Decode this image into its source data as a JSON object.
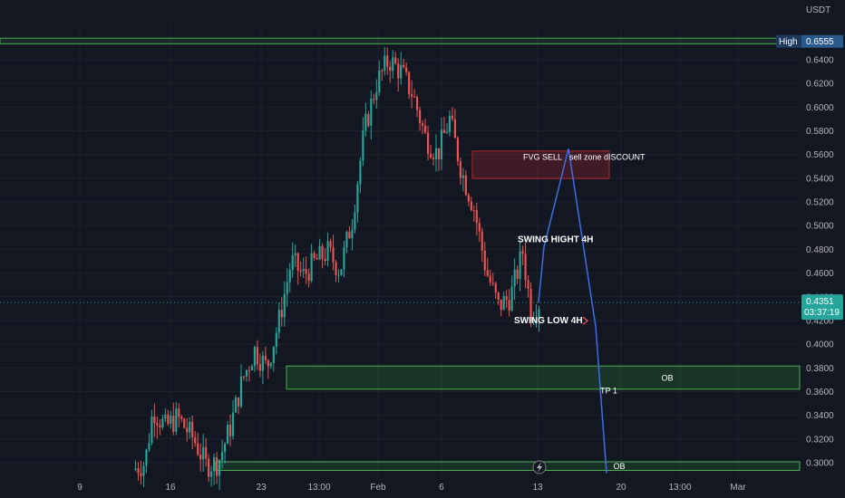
{
  "chart_data": {
    "type": "candlestick",
    "currency": "USDT",
    "ylim": [
      0.292,
      0.663
    ],
    "y_ticks": [
      "0.6400",
      "0.6200",
      "0.6000",
      "0.5800",
      "0.5600",
      "0.5400",
      "0.5200",
      "0.5000",
      "0.4800",
      "0.4600",
      "0.4400",
      "0.4200",
      "0.4000",
      "0.3800",
      "0.3600",
      "0.3400",
      "0.3200",
      "0.3000"
    ],
    "x_ticks": [
      "9",
      "16",
      "23",
      "13:00",
      "Feb",
      "6",
      "13",
      "20",
      "13:00",
      "Mar"
    ],
    "high_label": {
      "label": "High",
      "value": "0.6555",
      "price": 0.6555
    },
    "current": {
      "price": 0.4351,
      "value": "0.4351",
      "countdown": "03:37:19"
    },
    "zones": [
      {
        "name": "high-line",
        "top": 0.6582,
        "bottom": 0.6535,
        "color": "#4caf50"
      },
      {
        "name": "fvg-sell",
        "top": 0.563,
        "bottom": 0.5398,
        "color": "#b22833",
        "label": "FVG SELL",
        "label2": "sell zone dISCOUNT"
      },
      {
        "name": "ob-upper",
        "top": 0.3816,
        "bottom": 0.362,
        "color": "#4caf50",
        "label": "OB"
      },
      {
        "name": "ob-lower",
        "top": 0.3008,
        "bottom": 0.2935,
        "color": "#4caf50",
        "label": "OB"
      }
    ],
    "annotations": [
      "SWING HIGHT 4H",
      "SWING LOW 4H",
      "TP 1"
    ],
    "projection": [
      {
        "price": 0.4351
      },
      {
        "price": 0.482
      },
      {
        "price": 0.565
      },
      {
        "price": 0.415
      },
      {
        "price": 0.291
      }
    ],
    "key_points": [
      {
        "t": 0.0,
        "p": 0.294
      },
      {
        "t": 0.03,
        "p": 0.3
      },
      {
        "t": 0.05,
        "p": 0.345
      },
      {
        "t": 0.08,
        "p": 0.33
      },
      {
        "t": 0.11,
        "p": 0.338
      },
      {
        "t": 0.15,
        "p": 0.32
      },
      {
        "t": 0.18,
        "p": 0.298
      },
      {
        "t": 0.21,
        "p": 0.3
      },
      {
        "t": 0.24,
        "p": 0.33
      },
      {
        "t": 0.27,
        "p": 0.37
      },
      {
        "t": 0.3,
        "p": 0.395
      },
      {
        "t": 0.33,
        "p": 0.38
      },
      {
        "t": 0.36,
        "p": 0.42
      },
      {
        "t": 0.39,
        "p": 0.47
      },
      {
        "t": 0.42,
        "p": 0.458
      },
      {
        "t": 0.45,
        "p": 0.47
      },
      {
        "t": 0.48,
        "p": 0.478
      },
      {
        "t": 0.51,
        "p": 0.462
      },
      {
        "t": 0.54,
        "p": 0.505
      },
      {
        "t": 0.57,
        "p": 0.58
      },
      {
        "t": 0.6,
        "p": 0.62
      },
      {
        "t": 0.63,
        "p": 0.64
      },
      {
        "t": 0.66,
        "p": 0.63
      },
      {
        "t": 0.69,
        "p": 0.61
      },
      {
        "t": 0.72,
        "p": 0.575
      },
      {
        "t": 0.75,
        "p": 0.56
      },
      {
        "t": 0.78,
        "p": 0.59
      },
      {
        "t": 0.81,
        "p": 0.545
      },
      {
        "t": 0.84,
        "p": 0.515
      },
      {
        "t": 0.87,
        "p": 0.462
      },
      {
        "t": 0.9,
        "p": 0.432
      },
      {
        "t": 0.93,
        "p": 0.44
      },
      {
        "t": 0.96,
        "p": 0.478
      },
      {
        "t": 0.98,
        "p": 0.428
      },
      {
        "t": 1.0,
        "p": 0.4351
      }
    ],
    "colors": {
      "up": "#26a69a",
      "down": "#ef5350",
      "bg": "#131722",
      "grid": "#1e222d",
      "projection": "#3b6ee8"
    }
  }
}
